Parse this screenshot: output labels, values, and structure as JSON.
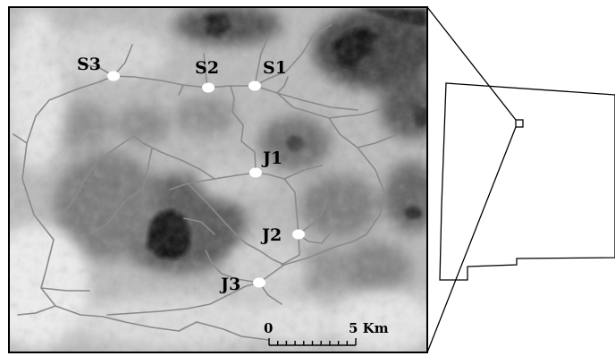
{
  "sites": [
    {
      "id": "S3",
      "label": "S3"
    },
    {
      "id": "S2",
      "label": "S2"
    },
    {
      "id": "S1",
      "label": "S1"
    },
    {
      "id": "J1",
      "label": "J1"
    },
    {
      "id": "J2",
      "label": "J2"
    },
    {
      "id": "J3",
      "label": "J3"
    }
  ],
  "scale_bar": {
    "start_label": "0",
    "end_label": "5 Km"
  },
  "colors": {
    "stream": "#8a8a8a",
    "site_marker": "#ffffff",
    "frame": "#000000",
    "relief_dark": "#0a0a0a",
    "relief_light": "#f2f2f2"
  }
}
